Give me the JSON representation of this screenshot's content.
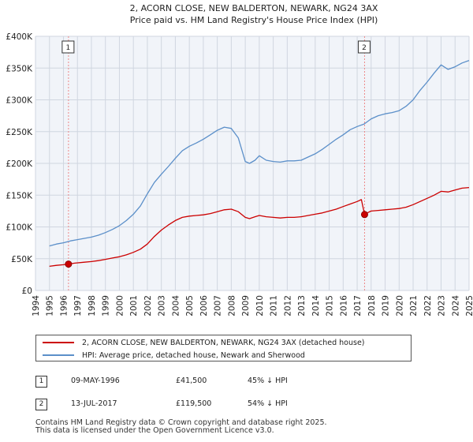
{
  "chart_data": {
    "type": "line",
    "title": "2, ACORN CLOSE, NEW BALDERTON, NEWARK, NG24 3AX",
    "subtitle": "Price paid vs. HM Land Registry's House Price Index (HPI)",
    "xlabel": "",
    "ylabel": "",
    "xlim": [
      1994,
      2025
    ],
    "ylim": [
      0,
      400000
    ],
    "y_ticks": [
      0,
      50000,
      100000,
      150000,
      200000,
      250000,
      300000,
      350000,
      400000
    ],
    "y_tick_labels": [
      "£0",
      "£50K",
      "£100K",
      "£150K",
      "£200K",
      "£250K",
      "£300K",
      "£350K",
      "£400K"
    ],
    "x_ticks": [
      "1994",
      "1995",
      "1996",
      "1997",
      "1998",
      "1999",
      "2000",
      "2001",
      "2002",
      "2003",
      "2004",
      "2005",
      "2006",
      "2007",
      "2008",
      "2009",
      "2010",
      "2011",
      "2012",
      "2013",
      "2014",
      "2015",
      "2016",
      "2017",
      "2018",
      "2019",
      "2020",
      "2021",
      "2022",
      "2023",
      "2024",
      "2025"
    ],
    "grid": true,
    "series": [
      {
        "name": "2, ACORN CLOSE, NEW BALDERTON, NEWARK, NG24 3AX (detached house)",
        "color": "#cc0000",
        "x": [
          1995.0,
          1995.5,
          1996.0,
          1996.36,
          1996.8,
          1997.5,
          1998.0,
          1998.5,
          1999.0,
          1999.5,
          2000.0,
          2000.5,
          2001.0,
          2001.5,
          2002.0,
          2002.5,
          2003.0,
          2003.5,
          2004.0,
          2004.5,
          2005.0,
          2005.5,
          2006.0,
          2006.5,
          2007.0,
          2007.5,
          2008.0,
          2008.5,
          2009.0,
          2009.3,
          2009.7,
          2010.0,
          2010.5,
          2011.0,
          2011.5,
          2012.0,
          2012.5,
          2013.0,
          2013.5,
          2014.0,
          2014.5,
          2015.0,
          2015.5,
          2016.0,
          2016.5,
          2017.0,
          2017.3,
          2017.53,
          2017.8,
          2018.0,
          2018.5,
          2019.0,
          2019.5,
          2020.0,
          2020.5,
          2021.0,
          2021.5,
          2022.0,
          2022.5,
          2023.0,
          2023.5,
          2024.0,
          2024.5,
          2025.0
        ],
        "values": [
          38000,
          39500,
          40500,
          41500,
          43000,
          44500,
          45500,
          47000,
          49000,
          51000,
          53000,
          56000,
          60000,
          65000,
          73000,
          85000,
          95000,
          103000,
          110000,
          115000,
          117000,
          118000,
          119000,
          121000,
          124000,
          127000,
          128000,
          124000,
          115000,
          113000,
          116000,
          118000,
          116000,
          115000,
          114000,
          115000,
          115000,
          116000,
          118000,
          120000,
          122000,
          125000,
          128000,
          132000,
          136000,
          140000,
          143000,
          119500,
          123000,
          125000,
          126000,
          127000,
          128000,
          129000,
          131000,
          135000,
          140000,
          145000,
          150000,
          156000,
          155000,
          158000,
          161000,
          162000
        ]
      },
      {
        "name": "HPI: Average price, detached house, Newark and Sherwood",
        "color": "#5b8fc9",
        "x": [
          1995.0,
          1995.5,
          1996.0,
          1996.5,
          1997.0,
          1997.5,
          1998.0,
          1998.5,
          1999.0,
          1999.5,
          2000.0,
          2000.5,
          2001.0,
          2001.5,
          2002.0,
          2002.5,
          2003.0,
          2003.5,
          2004.0,
          2004.5,
          2005.0,
          2005.5,
          2006.0,
          2006.5,
          2007.0,
          2007.5,
          2008.0,
          2008.5,
          2009.0,
          2009.3,
          2009.7,
          2010.0,
          2010.5,
          2011.0,
          2011.5,
          2012.0,
          2012.5,
          2013.0,
          2013.5,
          2014.0,
          2014.5,
          2015.0,
          2015.5,
          2016.0,
          2016.5,
          2017.0,
          2017.5,
          2018.0,
          2018.5,
          2019.0,
          2019.5,
          2020.0,
          2020.5,
          2021.0,
          2021.5,
          2022.0,
          2022.5,
          2023.0,
          2023.5,
          2024.0,
          2024.5,
          2025.0
        ],
        "values": [
          70000,
          73000,
          75000,
          78000,
          80000,
          82000,
          84000,
          87000,
          91000,
          96000,
          102000,
          110000,
          120000,
          133000,
          152000,
          170000,
          183000,
          195000,
          208000,
          220000,
          227000,
          232000,
          238000,
          245000,
          252000,
          257000,
          255000,
          240000,
          203000,
          200000,
          205000,
          212000,
          205000,
          203000,
          202000,
          204000,
          204000,
          205000,
          210000,
          215000,
          222000,
          230000,
          238000,
          245000,
          253000,
          258000,
          262000,
          270000,
          275000,
          278000,
          280000,
          283000,
          290000,
          300000,
          315000,
          328000,
          342000,
          355000,
          348000,
          352000,
          358000,
          362000
        ]
      }
    ],
    "annotations": [
      {
        "label": "1",
        "x": 1996.36,
        "y": 41500
      },
      {
        "label": "2",
        "x": 2017.53,
        "y": 119500
      }
    ]
  },
  "table": [
    {
      "id": "1",
      "date": "09-MAY-1996",
      "price": "£41,500",
      "hpi": "45% ↓ HPI"
    },
    {
      "id": "2",
      "date": "13-JUL-2017",
      "price": "£119,500",
      "hpi": "54% ↓ HPI"
    }
  ],
  "footer": {
    "line1": "Contains HM Land Registry data © Crown copyright and database right 2025.",
    "line2": "This data is licensed under the Open Government Licence v3.0."
  }
}
